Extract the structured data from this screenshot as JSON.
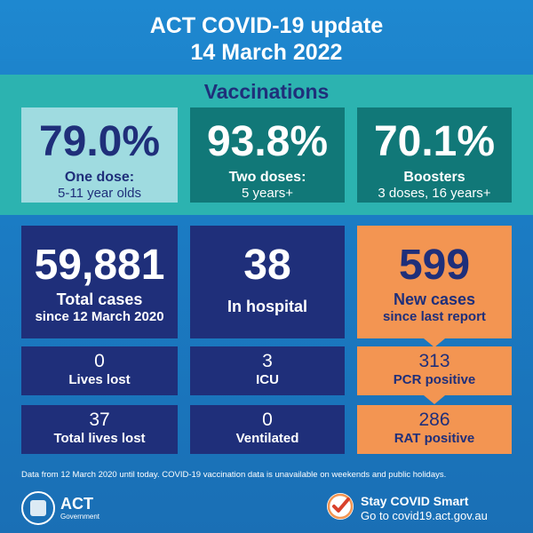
{
  "header": {
    "title_line1": "ACT COVID-19 update",
    "title_line2": "14 March 2022"
  },
  "vaccinations": {
    "title": "Vaccinations",
    "one_dose": {
      "value": "79.0%",
      "label": "One dose:",
      "sub": "5-11 year olds"
    },
    "two_doses": {
      "value": "93.8%",
      "label": "Two doses:",
      "sub": "5 years+"
    },
    "boosters": {
      "value": "70.1%",
      "label": "Boosters",
      "sub": "3 doses, 16 years+"
    }
  },
  "stats": {
    "total_cases": {
      "value": "59,881",
      "label": "Total cases",
      "sub": "since 12 March 2020"
    },
    "in_hospital": {
      "value": "38",
      "label": "In hospital"
    },
    "new_cases": {
      "value": "599",
      "label": "New cases",
      "sub": "since last report"
    },
    "lives_lost": {
      "value": "0",
      "label": "Lives lost"
    },
    "icu": {
      "value": "3",
      "label": "ICU"
    },
    "pcr_positive": {
      "value": "313",
      "label": "PCR positive"
    },
    "total_lives_lost": {
      "value": "37",
      "label": "Total lives lost"
    },
    "ventilated": {
      "value": "0",
      "label": "Ventilated"
    },
    "rat_positive": {
      "value": "286",
      "label": "RAT positive"
    }
  },
  "footnote": "Data from 12 March 2020 until today.  COVID-19 vaccination data is unavailable on weekends and public holidays.",
  "logo": {
    "name": "ACT",
    "sub": "Government",
    "icon": "act-crest-icon"
  },
  "campaign": {
    "title": "Stay COVID Smart",
    "url_text": "Go to covid19.act.gov.au",
    "icon": "checkmark-icon"
  },
  "colors": {
    "background": "#1b7cc4",
    "vaccination_band": "#2cb3b0",
    "navy": "#1f2f7a",
    "teal_dark": "#117878",
    "light_teal": "#9fdbe0",
    "orange": "#f39552"
  }
}
